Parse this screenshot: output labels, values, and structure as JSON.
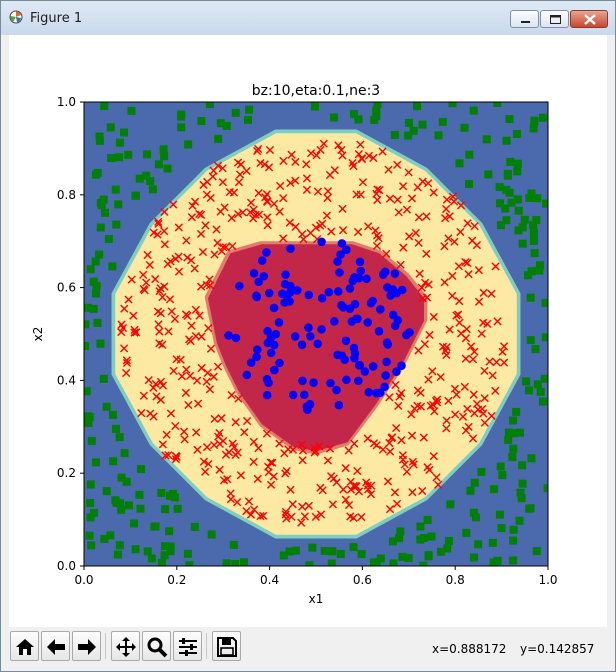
{
  "window": {
    "title": "Figure 1"
  },
  "chart_data": {
    "type": "scatter",
    "title": "bz:10,eta:0.1,ne:3",
    "xlabel": "x1",
    "ylabel": "x2",
    "xlim": [
      0,
      1
    ],
    "ylim": [
      0,
      1
    ],
    "xticks": [
      "0.0",
      "0.2",
      "0.4",
      "0.6",
      "0.8",
      "1.0"
    ],
    "yticks": [
      "0.0",
      "0.2",
      "0.4",
      "0.6",
      "0.8",
      "1.0"
    ],
    "grid": false,
    "legend": "none",
    "regions": [
      {
        "class": "outer",
        "color": "#4a6aad"
      },
      {
        "class": "ring",
        "color": "#fde9a1",
        "boundary_radius": 0.44
      },
      {
        "class": "inner",
        "color": "#c2274a",
        "polygon": [
          [
            0.26,
            0.58
          ],
          [
            0.31,
            0.68
          ],
          [
            0.38,
            0.7
          ],
          [
            0.58,
            0.7
          ],
          [
            0.64,
            0.68
          ],
          [
            0.7,
            0.63
          ],
          [
            0.74,
            0.58
          ],
          [
            0.74,
            0.53
          ],
          [
            0.69,
            0.43
          ],
          [
            0.63,
            0.34
          ],
          [
            0.57,
            0.26
          ],
          [
            0.5,
            0.24
          ],
          [
            0.45,
            0.25
          ],
          [
            0.38,
            0.3
          ],
          [
            0.33,
            0.37
          ],
          [
            0.3,
            0.43
          ],
          [
            0.28,
            0.48
          ],
          [
            0.27,
            0.53
          ]
        ]
      }
    ],
    "series": [
      {
        "marker": "square",
        "color": "#008000",
        "class": "outside",
        "rule": "radius > 0.45",
        "count": 260
      },
      {
        "marker": "x",
        "color": "#ff0000",
        "class": "ring",
        "rule": "0.20 <= radius <= 0.42",
        "count": 480
      },
      {
        "marker": "circle",
        "color": "#0000ff",
        "class": "center",
        "rule": "radius < 0.20",
        "count": 120
      }
    ]
  },
  "toolbar": {
    "buttons": [
      "home-icon",
      "back-icon",
      "forward-icon",
      "pan-icon",
      "zoom-icon",
      "configure-icon",
      "save-icon"
    ],
    "x_readout": "x=0.888172",
    "y_readout": "y=0.142857"
  }
}
